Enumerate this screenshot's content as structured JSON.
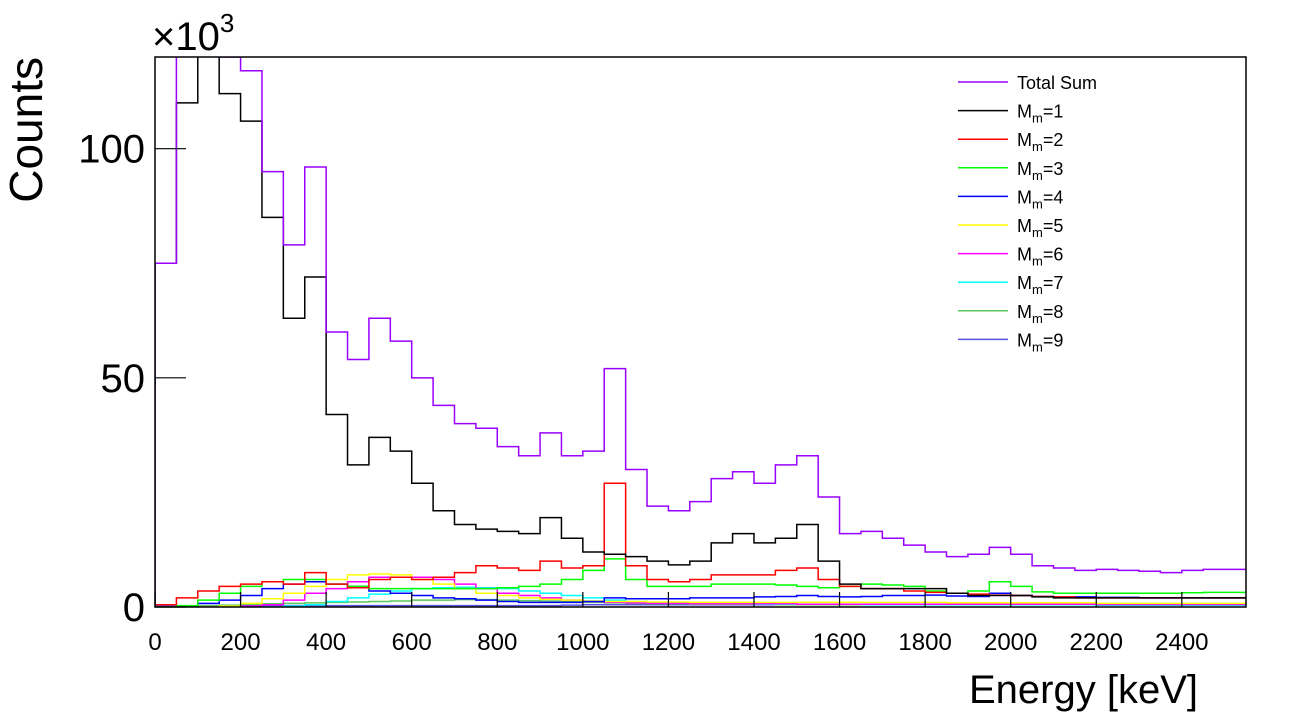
{
  "chart_data": {
    "type": "line",
    "style": "step-histogram",
    "title": "",
    "xlabel": "Energy [keV]",
    "ylabel": "Counts",
    "y_multiplier": {
      "base": "×10",
      "exp": "3"
    },
    "xlim": [
      0,
      2550
    ],
    "ylim": [
      0,
      120
    ],
    "xticks": [
      "0",
      "200",
      "400",
      "600",
      "800",
      "1000",
      "1200",
      "1400",
      "1600",
      "1800",
      "2000",
      "2200",
      "2400"
    ],
    "yticks": [
      "0",
      "50",
      "100"
    ],
    "grid": false,
    "legend_placement": "top-right",
    "bin_width_keV": 50,
    "units_note": "values in thousands of counts per bin",
    "series": [
      {
        "name": "Total Sum",
        "legend": {
          "base": "Total Sum",
          "sub": "",
          "rest": ""
        },
        "color": "#9a00ff",
        "values": [
          75,
          125,
          135,
          120,
          117,
          95,
          79,
          96,
          60,
          54,
          63,
          58,
          50,
          44,
          40,
          39,
          35,
          33,
          38,
          33,
          34,
          52,
          30,
          22,
          21,
          23,
          28,
          29.5,
          27,
          31,
          33,
          24,
          16,
          16.5,
          15,
          13.5,
          12,
          11,
          11.5,
          13,
          11.5,
          9,
          8.5,
          8,
          8.2,
          8,
          7.8,
          7.5,
          8,
          8.2,
          8.2
        ]
      },
      {
        "name": "Mm=1",
        "legend": {
          "base": "M",
          "sub": "m",
          "rest": "=1"
        },
        "color": "#000000",
        "values": [
          75,
          110,
          135,
          112,
          106,
          85,
          63,
          72,
          42,
          31,
          37,
          34,
          27,
          21,
          18,
          17,
          16.5,
          16,
          19.5,
          15,
          12,
          11.5,
          11,
          10,
          9.2,
          10,
          14,
          16,
          14,
          15,
          18,
          10,
          5,
          4,
          4,
          4,
          4,
          3,
          2.5,
          2.5,
          2.5,
          2.2,
          2,
          2,
          2,
          2,
          2,
          2,
          2,
          2,
          2
        ]
      },
      {
        "name": "Mm=2",
        "legend": {
          "base": "M",
          "sub": "m",
          "rest": "=2"
        },
        "color": "#ff0000",
        "values": [
          0.5,
          2,
          3.5,
          4.5,
          5,
          5.5,
          5,
          7.5,
          5,
          4.2,
          6,
          6.5,
          6,
          6.5,
          7.5,
          9,
          8.5,
          8,
          10,
          8.5,
          9,
          27,
          9,
          6,
          5.5,
          6,
          7,
          7,
          7,
          8,
          8.5,
          6,
          4.5,
          4,
          4,
          3.5,
          3.2,
          3,
          2.8,
          2.6,
          2.5,
          2.3,
          2.2,
          2,
          2,
          2,
          2,
          2,
          2,
          2,
          2
        ]
      },
      {
        "name": "Mm=3",
        "legend": {
          "base": "M",
          "sub": "m",
          "rest": "=3"
        },
        "color": "#00ff00",
        "values": [
          0,
          0.3,
          1.5,
          3,
          4.5,
          5.5,
          6,
          6,
          5,
          4.5,
          4,
          4,
          4,
          4,
          4,
          4,
          4.2,
          4.5,
          5,
          6,
          8,
          10.5,
          6,
          4.5,
          4.5,
          4.5,
          5,
          5,
          5,
          4.8,
          4.5,
          4.2,
          4.5,
          5,
          4.8,
          4.5,
          3.5,
          3,
          3.5,
          5.5,
          4.5,
          3.3,
          3,
          3,
          3,
          3,
          3,
          3,
          3.1,
          3.2,
          3.2
        ]
      },
      {
        "name": "Mm=4",
        "legend": {
          "base": "M",
          "sub": "m",
          "rest": "=4"
        },
        "color": "#0000ff",
        "values": [
          0,
          0.2,
          0.8,
          1.5,
          2.5,
          4,
          5,
          5.5,
          5,
          4.5,
          3.5,
          3,
          2.5,
          2,
          1.8,
          1.5,
          1.2,
          1,
          1,
          1,
          1.2,
          2,
          1.8,
          1.8,
          1.8,
          2,
          2,
          2,
          2.2,
          2.3,
          2.5,
          2.3,
          2.2,
          2.3,
          2.5,
          2.5,
          2.6,
          2.4,
          2.3,
          3,
          2.5,
          2.3,
          2.2,
          2.2,
          2.1,
          2.1,
          2,
          2,
          2,
          2,
          2
        ]
      },
      {
        "name": "Mm=5",
        "legend": {
          "base": "M",
          "sub": "m",
          "rest": "=5"
        },
        "color": "#ffff00",
        "values": [
          0,
          0,
          0,
          0.2,
          0.8,
          1.8,
          3,
          4.5,
          6,
          7,
          7.2,
          7,
          6,
          5,
          4,
          3,
          2.5,
          2,
          1.7,
          1.5,
          1.3,
          1.2,
          1.2,
          1.1,
          1.1,
          1,
          1,
          1,
          1,
          1,
          1,
          1,
          1,
          1,
          1,
          1,
          1,
          0.9,
          0.9,
          0.9,
          0.9,
          0.9,
          0.9,
          0.9,
          0.8,
          0.8,
          0.8,
          0.8,
          0.8,
          0.8,
          0.8
        ]
      },
      {
        "name": "Mm=6",
        "legend": {
          "base": "M",
          "sub": "m",
          "rest": "=6"
        },
        "color": "#ff00ff",
        "values": [
          0,
          0,
          0,
          0,
          0.2,
          0.5,
          1.5,
          3,
          4,
          5.5,
          6.5,
          6.5,
          6.5,
          6,
          5,
          4,
          3,
          2.5,
          2,
          1.5,
          1.2,
          1,
          0.9,
          0.8,
          0.8,
          0.7,
          0.7,
          0.7,
          0.7,
          0.7,
          0.6,
          0.6,
          0.6,
          0.6,
          0.6,
          0.6,
          0.6,
          0.6,
          0.6,
          0.6,
          0.6,
          0.6,
          0.6,
          0.6,
          0.6,
          0.6,
          0.6,
          0.6,
          0.6,
          0.6,
          0.6
        ]
      },
      {
        "name": "Mm=7",
        "legend": {
          "base": "M",
          "sub": "m",
          "rest": "=7"
        },
        "color": "#00ffff",
        "values": [
          0,
          0,
          0,
          0,
          0,
          0,
          0.2,
          0.5,
          1.2,
          2,
          2.8,
          3.5,
          4,
          4.2,
          4.3,
          4.2,
          4,
          3.5,
          3,
          2.5,
          2,
          1.5,
          1.2,
          1,
          0.9,
          0.8,
          0.7,
          0.7,
          0.6,
          0.6,
          0.6,
          0.6,
          0.6,
          0.5,
          0.5,
          0.5,
          0.5,
          0.5,
          0.5,
          0.5,
          0.5,
          0.5,
          0.5,
          0.5,
          0.5,
          0.5,
          0.5,
          0.5,
          0.5,
          0.5,
          0.5
        ]
      },
      {
        "name": "Mm=8",
        "legend": {
          "base": "M",
          "sub": "m",
          "rest": "=8"
        },
        "color": "#5ac85a",
        "values": [
          0,
          0.1,
          0.3,
          0.4,
          0.6,
          0.7,
          0.8,
          0.9,
          1,
          1.1,
          1.2,
          1.3,
          1.5,
          1.5,
          1.6,
          1.6,
          1.5,
          1.4,
          1.3,
          1.2,
          1,
          0.9,
          0.8,
          0.7,
          0.7,
          0.6,
          0.6,
          0.6,
          0.6,
          0.5,
          0.5,
          0.5,
          0.5,
          0.5,
          0.5,
          0.5,
          0.5,
          0.5,
          0.5,
          0.5,
          0.5,
          0.5,
          0.5,
          0.5,
          0.5,
          0.5,
          0.5,
          0.5,
          0.5,
          0.5,
          0.5
        ]
      },
      {
        "name": "Mm=9",
        "legend": {
          "base": "M",
          "sub": "m",
          "rest": "=9"
        },
        "color": "#5a50e6",
        "values": [
          0.2,
          0.2,
          0.3,
          0.3,
          0.3,
          0.3,
          0.3,
          0.3,
          0.3,
          0.3,
          0.3,
          0.3,
          0.3,
          0.3,
          0.3,
          0.3,
          0.3,
          0.3,
          0.3,
          0.4,
          0.5,
          0.5,
          0.5,
          0.5,
          0.5,
          0.5,
          0.5,
          0.5,
          0.5,
          0.5,
          0.5,
          0.5,
          0.5,
          0.5,
          0.5,
          0.5,
          0.5,
          0.5,
          0.5,
          0.5,
          0.5,
          0.5,
          0.5,
          0.5,
          0.4,
          0.4,
          0.4,
          0.4,
          0.4,
          0.4,
          0.4
        ]
      }
    ]
  }
}
